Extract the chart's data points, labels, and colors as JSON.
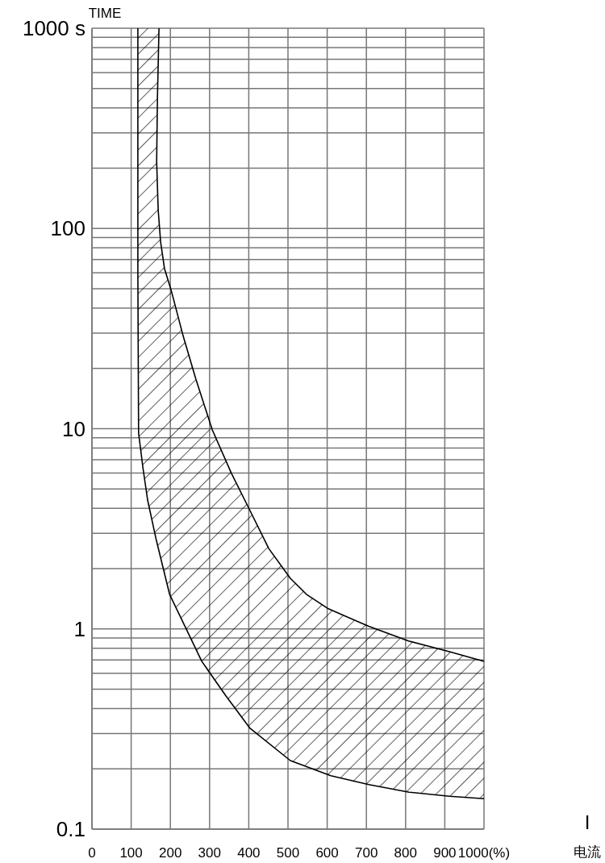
{
  "chart_data": {
    "type": "area",
    "ylabel": "TIME",
    "xlabel": "I",
    "annotations": [
      "电流"
    ],
    "xlim": [
      0,
      1000
    ],
    "xticks": [
      0,
      100,
      200,
      300,
      400,
      500,
      600,
      700,
      800,
      900,
      {
        "value": 1000,
        "label": "1000(%)"
      }
    ],
    "ylim": [
      0.1,
      1000
    ],
    "yticks": [
      0.1,
      1,
      10,
      100,
      {
        "value": 1000,
        "label": "1000 s"
      }
    ],
    "log": "y",
    "grid": true,
    "series": [
      {
        "color": "#000000",
        "x": [
          171,
          167,
          165,
          169,
          175,
          185,
          202,
          233,
          265,
          307,
          356,
          403,
          451,
          506,
          547,
          603,
          706,
          809,
          912,
          1000,
          null,
          1000,
          912,
          809,
          706,
          609,
          506,
          403,
          342,
          280,
          198,
          163,
          142,
          130,
          119,
          117,
          117
        ],
        "values": [
          1000,
          455,
          216,
          124,
          85.7,
          63.1,
          49.1,
          28.9,
          17.7,
          9.86,
          5.97,
          3.9,
          2.52,
          1.79,
          1.49,
          1.26,
          1.03,
          0.869,
          0.77,
          0.689,
          null,
          0.142,
          0.146,
          0.153,
          0.167,
          0.185,
          0.22,
          0.319,
          0.462,
          0.689,
          1.49,
          2.84,
          4.4,
          6.38,
          9.5,
          59,
          1000
        ]
      }
    ]
  }
}
